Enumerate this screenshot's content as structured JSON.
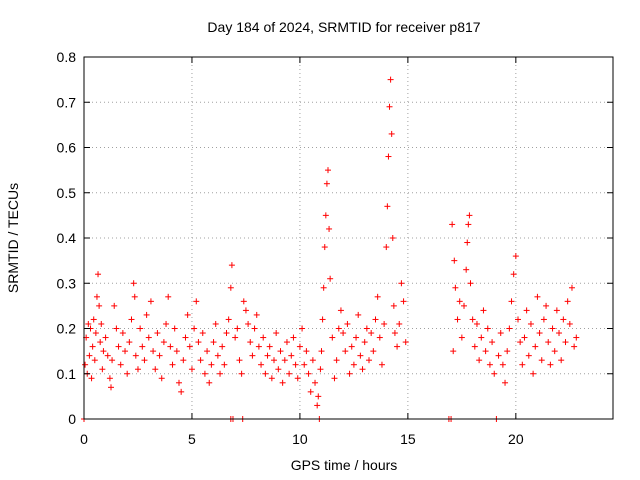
{
  "chart_data": {
    "type": "scatter",
    "title": "Day 184 of 2024, SRMTID for receiver p817",
    "xlabel": "GPS time / hours",
    "ylabel": "SRMTID / TECUs",
    "xlim": [
      0,
      24.5
    ],
    "ylim": [
      0,
      0.8
    ],
    "x_ticks": [
      0,
      5,
      10,
      15,
      20
    ],
    "x_tick_labels": [
      "0",
      "5",
      "10",
      "15",
      "20"
    ],
    "y_ticks": [
      0,
      0.1,
      0.2,
      0.3,
      0.4,
      0.5,
      0.6,
      0.7,
      0.8
    ],
    "y_tick_labels": [
      "0",
      "0.1",
      "0.2",
      "0.3",
      "0.4",
      "0.5",
      "0.6",
      "0.7",
      "0.8"
    ],
    "grid": true,
    "marker": "+",
    "color": "#ff0000",
    "series": [
      {
        "name": "SRMTID",
        "points": [
          [
            0.0,
            0.0
          ],
          [
            0.05,
            0.12
          ],
          [
            0.1,
            0.18
          ],
          [
            0.15,
            0.1
          ],
          [
            0.2,
            0.21
          ],
          [
            0.25,
            0.14
          ],
          [
            0.3,
            0.2
          ],
          [
            0.35,
            0.09
          ],
          [
            0.4,
            0.16
          ],
          [
            0.45,
            0.22
          ],
          [
            0.5,
            0.13
          ],
          [
            0.55,
            0.19
          ],
          [
            0.6,
            0.27
          ],
          [
            0.65,
            0.32
          ],
          [
            0.7,
            0.25
          ],
          [
            0.75,
            0.17
          ],
          [
            0.8,
            0.21
          ],
          [
            0.85,
            0.11
          ],
          [
            0.9,
            0.15
          ],
          [
            1.0,
            0.18
          ],
          [
            1.1,
            0.14
          ],
          [
            1.2,
            0.09
          ],
          [
            1.25,
            0.07
          ],
          [
            1.3,
            0.13
          ],
          [
            1.4,
            0.25
          ],
          [
            1.5,
            0.2
          ],
          [
            1.6,
            0.16
          ],
          [
            1.7,
            0.12
          ],
          [
            1.8,
            0.19
          ],
          [
            1.9,
            0.15
          ],
          [
            2.0,
            0.1
          ],
          [
            2.1,
            0.17
          ],
          [
            2.2,
            0.22
          ],
          [
            2.3,
            0.3
          ],
          [
            2.35,
            0.27
          ],
          [
            2.4,
            0.14
          ],
          [
            2.5,
            0.11
          ],
          [
            2.6,
            0.2
          ],
          [
            2.7,
            0.16
          ],
          [
            2.8,
            0.13
          ],
          [
            2.9,
            0.23
          ],
          [
            3.0,
            0.18
          ],
          [
            3.1,
            0.26
          ],
          [
            3.2,
            0.15
          ],
          [
            3.3,
            0.11
          ],
          [
            3.4,
            0.19
          ],
          [
            3.5,
            0.14
          ],
          [
            3.6,
            0.09
          ],
          [
            3.7,
            0.17
          ],
          [
            3.8,
            0.21
          ],
          [
            3.9,
            0.27
          ],
          [
            4.0,
            0.16
          ],
          [
            4.1,
            0.12
          ],
          [
            4.2,
            0.2
          ],
          [
            4.3,
            0.15
          ],
          [
            4.4,
            0.08
          ],
          [
            4.5,
            0.06
          ],
          [
            4.6,
            0.13
          ],
          [
            4.7,
            0.18
          ],
          [
            4.8,
            0.23
          ],
          [
            4.9,
            0.16
          ],
          [
            5.0,
            0.11
          ],
          [
            5.1,
            0.2
          ],
          [
            5.2,
            0.26
          ],
          [
            5.3,
            0.17
          ],
          [
            5.4,
            0.13
          ],
          [
            5.5,
            0.19
          ],
          [
            5.6,
            0.1
          ],
          [
            5.7,
            0.15
          ],
          [
            5.8,
            0.08
          ],
          [
            5.9,
            0.12
          ],
          [
            6.0,
            0.17
          ],
          [
            6.1,
            0.21
          ],
          [
            6.2,
            0.14
          ],
          [
            6.3,
            0.1
          ],
          [
            6.4,
            0.16
          ],
          [
            6.5,
            0.12
          ],
          [
            6.6,
            0.19
          ],
          [
            6.7,
            0.22
          ],
          [
            6.8,
            0.29
          ],
          [
            6.85,
            0.34
          ],
          [
            6.8,
            0.0
          ],
          [
            6.9,
            0.0
          ],
          [
            7.0,
            0.18
          ],
          [
            7.1,
            0.2
          ],
          [
            7.2,
            0.13
          ],
          [
            7.3,
            0.1
          ],
          [
            7.35,
            0.0
          ],
          [
            7.4,
            0.26
          ],
          [
            7.5,
            0.24
          ],
          [
            7.6,
            0.21
          ],
          [
            7.7,
            0.17
          ],
          [
            7.8,
            0.14
          ],
          [
            7.9,
            0.2
          ],
          [
            8.0,
            0.23
          ],
          [
            8.1,
            0.16
          ],
          [
            8.2,
            0.12
          ],
          [
            8.3,
            0.18
          ],
          [
            8.4,
            0.1
          ],
          [
            8.5,
            0.14
          ],
          [
            8.6,
            0.16
          ],
          [
            8.7,
            0.09
          ],
          [
            8.8,
            0.13
          ],
          [
            8.9,
            0.19
          ],
          [
            9.0,
            0.11
          ],
          [
            9.1,
            0.15
          ],
          [
            9.2,
            0.08
          ],
          [
            9.3,
            0.13
          ],
          [
            9.4,
            0.17
          ],
          [
            9.5,
            0.1
          ],
          [
            9.6,
            0.14
          ],
          [
            9.7,
            0.18
          ],
          [
            9.8,
            0.12
          ],
          [
            9.9,
            0.09
          ],
          [
            10.0,
            0.16
          ],
          [
            10.1,
            0.2
          ],
          [
            10.2,
            0.12
          ],
          [
            10.3,
            0.15
          ],
          [
            10.4,
            0.1
          ],
          [
            10.5,
            0.06
          ],
          [
            10.6,
            0.13
          ],
          [
            10.7,
            0.08
          ],
          [
            10.8,
            0.03
          ],
          [
            10.85,
            0.05
          ],
          [
            10.9,
            0.0
          ],
          [
            10.95,
            0.11
          ],
          [
            11.0,
            0.15
          ],
          [
            11.05,
            0.22
          ],
          [
            11.1,
            0.29
          ],
          [
            11.15,
            0.38
          ],
          [
            11.2,
            0.45
          ],
          [
            11.25,
            0.52
          ],
          [
            11.3,
            0.55
          ],
          [
            11.35,
            0.42
          ],
          [
            11.4,
            0.31
          ],
          [
            11.5,
            0.18
          ],
          [
            11.6,
            0.09
          ],
          [
            11.7,
            0.13
          ],
          [
            11.8,
            0.2
          ],
          [
            11.9,
            0.24
          ],
          [
            12.0,
            0.19
          ],
          [
            12.1,
            0.15
          ],
          [
            12.2,
            0.21
          ],
          [
            12.3,
            0.1
          ],
          [
            12.4,
            0.16
          ],
          [
            12.5,
            0.12
          ],
          [
            12.6,
            0.18
          ],
          [
            12.7,
            0.23
          ],
          [
            12.8,
            0.14
          ],
          [
            12.9,
            0.11
          ],
          [
            13.0,
            0.17
          ],
          [
            13.1,
            0.2
          ],
          [
            13.2,
            0.13
          ],
          [
            13.3,
            0.19
          ],
          [
            13.4,
            0.15
          ],
          [
            13.5,
            0.22
          ],
          [
            13.6,
            0.27
          ],
          [
            13.7,
            0.18
          ],
          [
            13.8,
            0.12
          ],
          [
            13.9,
            0.21
          ],
          [
            14.0,
            0.38
          ],
          [
            14.05,
            0.47
          ],
          [
            14.1,
            0.58
          ],
          [
            14.15,
            0.69
          ],
          [
            14.2,
            0.75
          ],
          [
            14.25,
            0.63
          ],
          [
            14.3,
            0.4
          ],
          [
            14.35,
            0.25
          ],
          [
            14.4,
            0.19
          ],
          [
            14.5,
            0.16
          ],
          [
            14.6,
            0.21
          ],
          [
            14.7,
            0.3
          ],
          [
            14.8,
            0.26
          ],
          [
            14.9,
            0.17
          ],
          [
            16.9,
            0.0
          ],
          [
            17.0,
            0.0
          ],
          [
            17.05,
            0.43
          ],
          [
            17.1,
            0.15
          ],
          [
            17.15,
            0.35
          ],
          [
            17.2,
            0.29
          ],
          [
            17.3,
            0.22
          ],
          [
            17.4,
            0.26
          ],
          [
            17.5,
            0.18
          ],
          [
            17.6,
            0.25
          ],
          [
            17.7,
            0.33
          ],
          [
            17.75,
            0.39
          ],
          [
            17.8,
            0.43
          ],
          [
            17.85,
            0.45
          ],
          [
            17.9,
            0.3
          ],
          [
            18.0,
            0.22
          ],
          [
            18.1,
            0.16
          ],
          [
            18.2,
            0.21
          ],
          [
            18.3,
            0.13
          ],
          [
            18.4,
            0.18
          ],
          [
            18.5,
            0.24
          ],
          [
            18.6,
            0.15
          ],
          [
            18.7,
            0.2
          ],
          [
            18.8,
            0.12
          ],
          [
            18.9,
            0.17
          ],
          [
            19.0,
            0.1
          ],
          [
            19.1,
            0.0
          ],
          [
            19.2,
            0.14
          ],
          [
            19.3,
            0.19
          ],
          [
            19.4,
            0.12
          ],
          [
            19.5,
            0.08
          ],
          [
            19.6,
            0.15
          ],
          [
            19.7,
            0.2
          ],
          [
            19.8,
            0.26
          ],
          [
            19.9,
            0.32
          ],
          [
            20.0,
            0.36
          ],
          [
            20.1,
            0.22
          ],
          [
            20.2,
            0.17
          ],
          [
            20.3,
            0.12
          ],
          [
            20.4,
            0.18
          ],
          [
            20.5,
            0.24
          ],
          [
            20.6,
            0.14
          ],
          [
            20.7,
            0.21
          ],
          [
            20.8,
            0.1
          ],
          [
            20.9,
            0.16
          ],
          [
            21.0,
            0.27
          ],
          [
            21.1,
            0.19
          ],
          [
            21.2,
            0.13
          ],
          [
            21.3,
            0.22
          ],
          [
            21.4,
            0.25
          ],
          [
            21.5,
            0.17
          ],
          [
            21.6,
            0.12
          ],
          [
            21.7,
            0.2
          ],
          [
            21.8,
            0.15
          ],
          [
            21.9,
            0.24
          ],
          [
            22.0,
            0.19
          ],
          [
            22.1,
            0.13
          ],
          [
            22.2,
            0.22
          ],
          [
            22.3,
            0.17
          ],
          [
            22.4,
            0.26
          ],
          [
            22.5,
            0.21
          ],
          [
            22.6,
            0.29
          ],
          [
            22.7,
            0.16
          ],
          [
            22.8,
            0.18
          ]
        ]
      }
    ]
  }
}
